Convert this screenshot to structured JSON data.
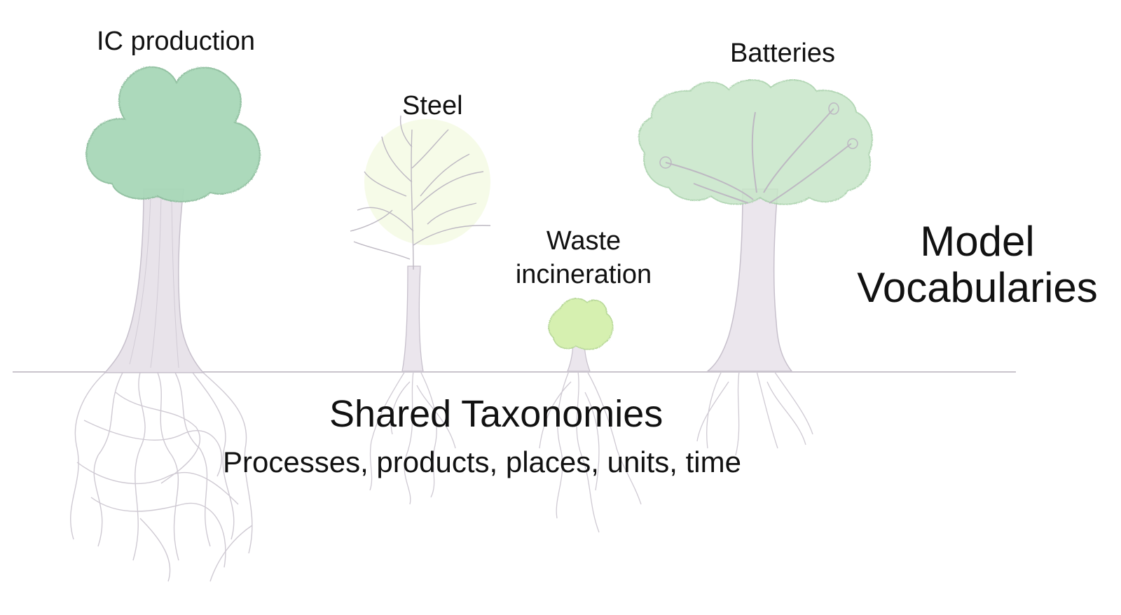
{
  "trees": [
    {
      "id": "ic",
      "label": "IC production"
    },
    {
      "id": "steel",
      "label": "Steel"
    },
    {
      "id": "waste",
      "label_lines": [
        "Waste",
        "incineration"
      ]
    },
    {
      "id": "batteries",
      "label": "Batteries"
    }
  ],
  "above_ground": {
    "lines": [
      "Model",
      "Vocabularies"
    ]
  },
  "below_ground": {
    "title": "Shared Taxonomies",
    "subtitle": "Processes, products, places, units, time"
  },
  "colors": {
    "foliage_dark": "#a8d8b8",
    "foliage_light": "#d6f0c8",
    "foliage_yellow": "#dff2b0",
    "trunk": "#d9d2dc",
    "pencil": "#bdb8c2",
    "ground_line": "#c9c4cc"
  }
}
